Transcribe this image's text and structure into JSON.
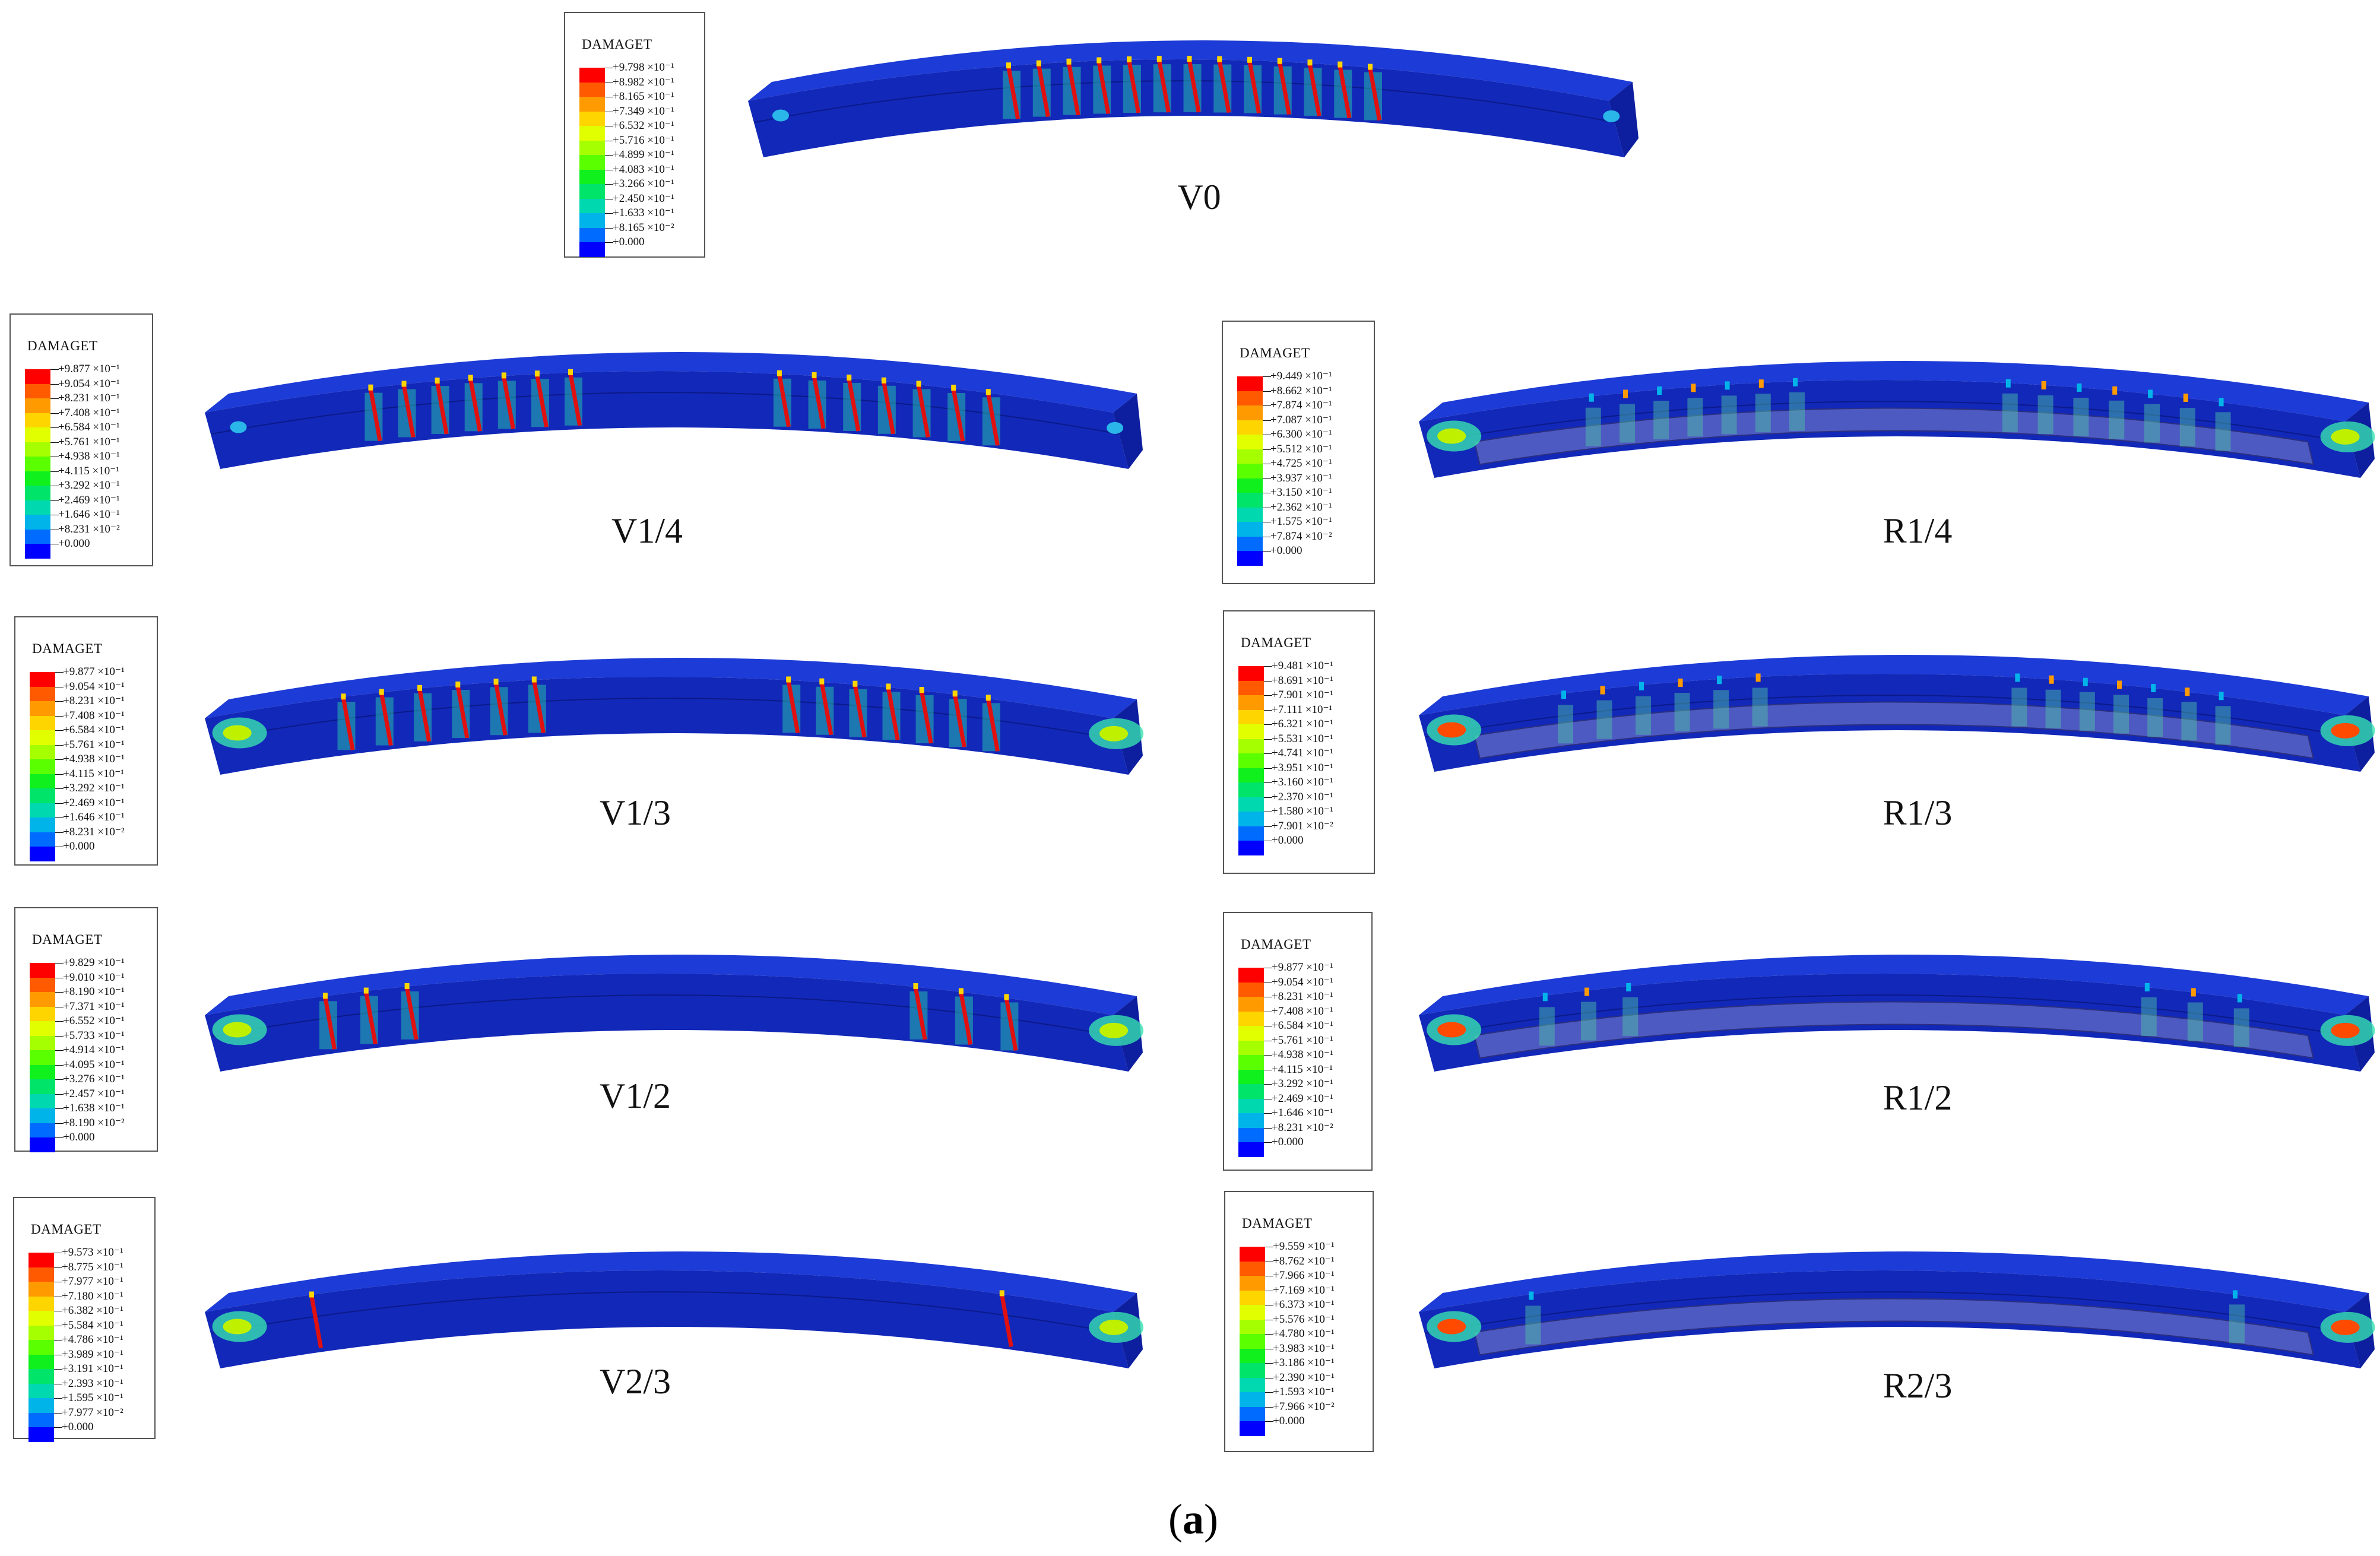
{
  "legend_title": "DAMAGET",
  "legend_colors": [
    "#ff0000",
    "#ff5a00",
    "#ff9a00",
    "#ffd500",
    "#e2ff00",
    "#a6ff00",
    "#5aff00",
    "#0ff01d",
    "#00e46a",
    "#00d8b0",
    "#00b4ea",
    "#006cff",
    "#0000ff"
  ],
  "caption": {
    "open": "(",
    "letter": "a",
    "close": ")"
  },
  "panels": [
    {
      "id": "V0",
      "label": "V0",
      "values": [
        "+9.798 ×10⁻¹",
        "+8.982 ×10⁻¹",
        "+8.165 ×10⁻¹",
        "+7.349 ×10⁻¹",
        "+6.532 ×10⁻¹",
        "+5.716 ×10⁻¹",
        "+4.899 ×10⁻¹",
        "+4.083 ×10⁻¹",
        "+3.266 ×10⁻¹",
        "+2.450 ×10⁻¹",
        "+1.633 ×10⁻¹",
        "+8.165 ×10⁻²",
        "+0.000"
      ]
    },
    {
      "id": "V14",
      "label": "V1/4",
      "values": [
        "+9.877 ×10⁻¹",
        "+9.054 ×10⁻¹",
        "+8.231 ×10⁻¹",
        "+7.408 ×10⁻¹",
        "+6.584 ×10⁻¹",
        "+5.761 ×10⁻¹",
        "+4.938 ×10⁻¹",
        "+4.115 ×10⁻¹",
        "+3.292 ×10⁻¹",
        "+2.469 ×10⁻¹",
        "+1.646 ×10⁻¹",
        "+8.231 ×10⁻²",
        "+0.000"
      ]
    },
    {
      "id": "R14",
      "label": "R1/4",
      "values": [
        "+9.449 ×10⁻¹",
        "+8.662 ×10⁻¹",
        "+7.874 ×10⁻¹",
        "+7.087 ×10⁻¹",
        "+6.300 ×10⁻¹",
        "+5.512 ×10⁻¹",
        "+4.725 ×10⁻¹",
        "+3.937 ×10⁻¹",
        "+3.150 ×10⁻¹",
        "+2.362 ×10⁻¹",
        "+1.575 ×10⁻¹",
        "+7.874 ×10⁻²",
        "+0.000"
      ]
    },
    {
      "id": "V13",
      "label": "V1/3",
      "values": [
        "+9.877 ×10⁻¹",
        "+9.054 ×10⁻¹",
        "+8.231 ×10⁻¹",
        "+7.408 ×10⁻¹",
        "+6.584 ×10⁻¹",
        "+5.761 ×10⁻¹",
        "+4.938 ×10⁻¹",
        "+4.115 ×10⁻¹",
        "+3.292 ×10⁻¹",
        "+2.469 ×10⁻¹",
        "+1.646 ×10⁻¹",
        "+8.231 ×10⁻²",
        "+0.000"
      ]
    },
    {
      "id": "R13",
      "label": "R1/3",
      "values": [
        "+9.481 ×10⁻¹",
        "+8.691 ×10⁻¹",
        "+7.901 ×10⁻¹",
        "+7.111 ×10⁻¹",
        "+6.321 ×10⁻¹",
        "+5.531 ×10⁻¹",
        "+4.741 ×10⁻¹",
        "+3.951 ×10⁻¹",
        "+3.160 ×10⁻¹",
        "+2.370 ×10⁻¹",
        "+1.580 ×10⁻¹",
        "+7.901 ×10⁻²",
        "+0.000"
      ]
    },
    {
      "id": "V12",
      "label": "V1/2",
      "values": [
        "+9.829 ×10⁻¹",
        "+9.010 ×10⁻¹",
        "+8.190 ×10⁻¹",
        "+7.371 ×10⁻¹",
        "+6.552 ×10⁻¹",
        "+5.733 ×10⁻¹",
        "+4.914 ×10⁻¹",
        "+4.095 ×10⁻¹",
        "+3.276 ×10⁻¹",
        "+2.457 ×10⁻¹",
        "+1.638 ×10⁻¹",
        "+8.190 ×10⁻²",
        "+0.000"
      ]
    },
    {
      "id": "R12",
      "label": "R1/2",
      "values": [
        "+9.877 ×10⁻¹",
        "+9.054 ×10⁻¹",
        "+8.231 ×10⁻¹",
        "+7.408 ×10⁻¹",
        "+6.584 ×10⁻¹",
        "+5.761 ×10⁻¹",
        "+4.938 ×10⁻¹",
        "+4.115 ×10⁻¹",
        "+3.292 ×10⁻¹",
        "+2.469 ×10⁻¹",
        "+1.646 ×10⁻¹",
        "+8.231 ×10⁻²",
        "+0.000"
      ]
    },
    {
      "id": "V23",
      "label": "V2/3",
      "values": [
        "+9.573 ×10⁻¹",
        "+8.775 ×10⁻¹",
        "+7.977 ×10⁻¹",
        "+7.180 ×10⁻¹",
        "+6.382 ×10⁻¹",
        "+5.584 ×10⁻¹",
        "+4.786 ×10⁻¹",
        "+3.989 ×10⁻¹",
        "+3.191 ×10⁻¹",
        "+2.393 ×10⁻¹",
        "+1.595 ×10⁻¹",
        "+7.977 ×10⁻²",
        "+0.000"
      ]
    },
    {
      "id": "R23",
      "label": "R2/3",
      "values": [
        "+9.559 ×10⁻¹",
        "+8.762 ×10⁻¹",
        "+7.966 ×10⁻¹",
        "+7.169 ×10⁻¹",
        "+6.373 ×10⁻¹",
        "+5.576 ×10⁻¹",
        "+4.780 ×10⁻¹",
        "+3.983 ×10⁻¹",
        "+3.186 ×10⁻¹",
        "+2.390 ×10⁻¹",
        "+1.593 ×10⁻¹",
        "+7.966 ×10⁻²",
        "+0.000"
      ]
    }
  ]
}
